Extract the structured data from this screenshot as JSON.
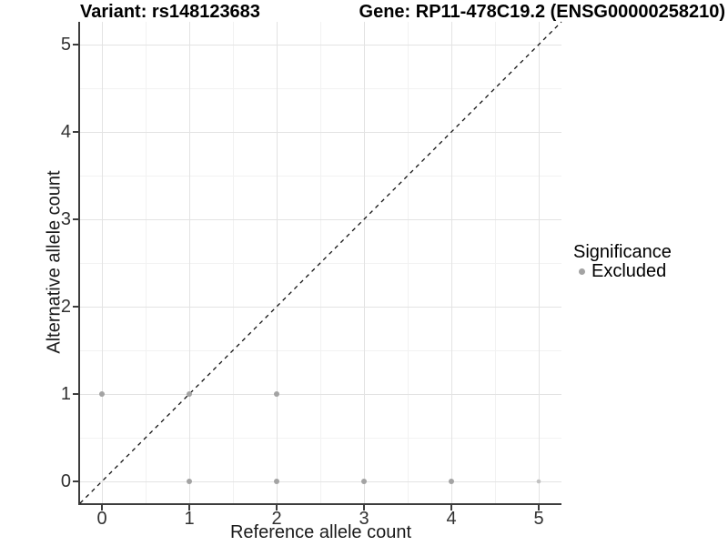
{
  "header": {
    "title_variant": "Variant: rs148123683",
    "title_gene": "Gene: RP11-478C19.2 (ENSG00000258210)"
  },
  "colors": {
    "point": "#a3a3a3",
    "point_light": "#c2c2c2",
    "axis": "#3d3d3d",
    "grid_major": "#e3e3e3",
    "grid_minor": "#f2f2f2",
    "tick_label": "#303030",
    "identity_line": "#111111",
    "text": "#000000"
  },
  "chart_data": {
    "type": "scatter",
    "title": "Variant: rs148123683   Gene: RP11-478C19.2 (ENSG00000258210)",
    "xlabel": "Reference allele count",
    "ylabel": "Alternative allele count",
    "xlim": [
      -0.25,
      5.26
    ],
    "ylim": [
      -0.25,
      5.26
    ],
    "xticks": [
      0,
      1,
      2,
      3,
      4,
      5
    ],
    "yticks": [
      0,
      1,
      2,
      3,
      4,
      5
    ],
    "xtick_labels": [
      "0",
      "1",
      "2",
      "3",
      "4",
      "5"
    ],
    "ytick_labels": [
      "0",
      "1",
      "2",
      "3",
      "4",
      "5"
    ],
    "minor_ticks": [
      0.5,
      1.5,
      2.5,
      3.5,
      4.5
    ],
    "grid": "major+minor",
    "identity_line": {
      "style": "dashed",
      "slope": 1,
      "intercept": 0,
      "from": [
        -0.25,
        -0.25
      ],
      "to": [
        5.26,
        5.26
      ]
    },
    "legend": {
      "title": "Significance",
      "position": "right",
      "items": [
        {
          "label": "Excluded",
          "color": "#a3a3a3"
        }
      ]
    },
    "series": [
      {
        "name": "Excluded",
        "color": "#a3a3a3",
        "points": [
          {
            "x": 0,
            "y": 1,
            "r": 3.0
          },
          {
            "x": 1,
            "y": 1,
            "r": 3.0
          },
          {
            "x": 2,
            "y": 1,
            "r": 3.0
          },
          {
            "x": 1,
            "y": 0,
            "r": 3.0
          },
          {
            "x": 2,
            "y": 0,
            "r": 3.0
          },
          {
            "x": 3,
            "y": 0,
            "r": 3.0
          },
          {
            "x": 4,
            "y": 0,
            "r": 3.0
          },
          {
            "x": 5,
            "y": 0,
            "r": 2.3,
            "color": "#c2c2c2"
          }
        ]
      }
    ]
  }
}
